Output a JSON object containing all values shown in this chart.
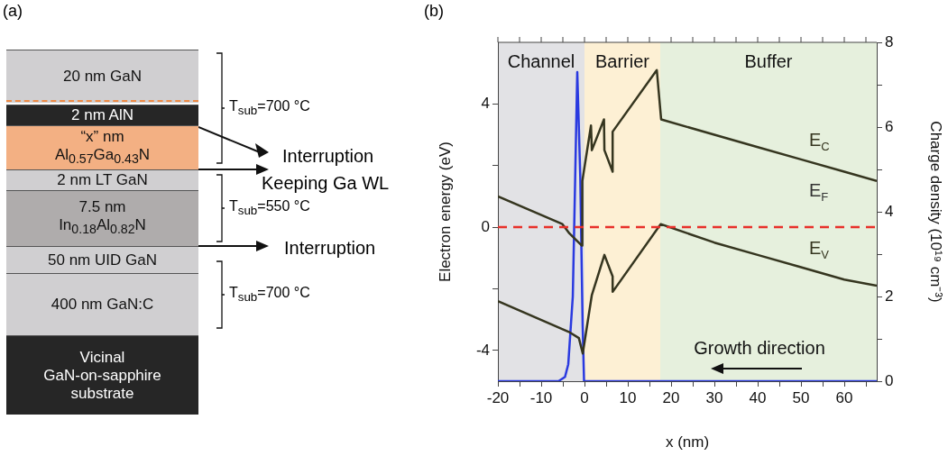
{
  "chart_data": [
    {
      "type": "other",
      "title": "(a)",
      "annotations": [
        "20 nm GaN",
        "2 nm AlN",
        "“x” nm Al$_{0.57}$Ga$_{0.43}$N",
        "2 nm LT GaN",
        "7.5 nm In$_{0.18}$Al$_{0.82}$N",
        "50 nm UID GaN",
        "400 nm GaN:C",
        "Vicinal GaN-on-sapphire substrate",
        "T$_{sub}$=700 °C",
        "T$_{sub}$=550 °C",
        "T$_{sub}$=700 °C",
        "Interruption",
        "Keeping Ga WL",
        "Interruption"
      ]
    },
    {
      "type": "line",
      "title": "(b)",
      "xlabel": "x (nm)",
      "ylabel": "Electron energy (eV)",
      "y2label": "Charge density (10¹⁹ cm⁻³)",
      "series": [
        {
          "name": "E$_{C}$",
          "color": "#35351f",
          "x": [
            -20,
            -5.1,
            -3.5,
            -0.6,
            -0.5,
            1.5,
            1.7,
            4.5,
            4.6,
            6.5,
            6.5,
            16.7,
            17.7,
            30,
            40,
            50,
            60,
            67.5
          ],
          "values": [
            1.0,
            0.1,
            -0.2,
            -0.6,
            1.5,
            3.3,
            2.5,
            3.5,
            2.5,
            1.8,
            3.1,
            5.1,
            3.5,
            3.0,
            2.6,
            2.2,
            1.8,
            1.5
          ]
        },
        {
          "name": "E$_{V}$",
          "color": "#35351f",
          "x": [
            -20,
            -3.6,
            -1.3,
            -0.4,
            1.7,
            4.6,
            6.5,
            6.5,
            17.6,
            30,
            40,
            50,
            60,
            67.5
          ],
          "values": [
            -2.4,
            -3.4,
            -3.6,
            -4.1,
            -2.2,
            -0.9,
            -1.6,
            -2.1,
            0.1,
            -0.5,
            -0.9,
            -1.3,
            -1.7,
            -1.9
          ]
        },
        {
          "color": "#2a3ae0",
          "axis": "y2",
          "x": [
            -20,
            -6,
            -4.5,
            -3.75,
            -2.7,
            -2.15,
            -1.67,
            -0.97,
            -0.42,
            -0.1,
            67.5
          ],
          "values": [
            0,
            0,
            0.1,
            0.4,
            2.0,
            4.8,
            7.3,
            4.8,
            1.3,
            0,
            0
          ]
        }
      ],
      "xlim": [
        -20,
        67.5
      ],
      "xticks": [
        -20,
        {
          "value": -15,
          "label": null
        },
        -10,
        {
          "value": -5,
          "label": null
        },
        0,
        {
          "value": 5,
          "label": null
        },
        10,
        {
          "value": 15,
          "label": null
        },
        20,
        {
          "value": 25,
          "label": null
        },
        30,
        {
          "value": 35,
          "label": null
        },
        40,
        {
          "value": 45,
          "label": null
        },
        50,
        {
          "value": 55,
          "label": null
        },
        60,
        {
          "value": 65,
          "label": null
        }
      ],
      "ylim": [
        -5,
        6
      ],
      "yticks": [
        -4,
        {
          "value": -2,
          "label": null
        },
        0,
        {
          "value": 2,
          "label": null
        },
        4
      ],
      "y2lim": [
        0,
        8
      ],
      "y2ticks": [
        0,
        {
          "value": 1,
          "label": null
        },
        2,
        {
          "value": 3,
          "label": null
        },
        4,
        {
          "value": 5,
          "label": null
        },
        6,
        {
          "value": 7,
          "label": null
        },
        8
      ],
      "ref_lines": [
        {
          "axis": "y",
          "value": 0,
          "label": "E$_{F}$",
          "color": "#e8302a",
          "line_style": "dashed"
        }
      ],
      "bands": [
        {
          "axis": "x",
          "from": -20,
          "to": 0,
          "label": "Channel",
          "color": "#e2e2e5"
        },
        {
          "axis": "x",
          "from": 0,
          "to": 17.5,
          "label": "Barrier",
          "color": "#fdf0d4"
        },
        {
          "axis": "x",
          "from": 17.5,
          "to": 67.5,
          "label": "Buffer",
          "color": "#e6f0dd"
        }
      ],
      "annotations": [
        "Growth direction"
      ],
      "grid": false,
      "legend": false,
      "marker": "none",
      "line_style": "solid"
    }
  ]
}
